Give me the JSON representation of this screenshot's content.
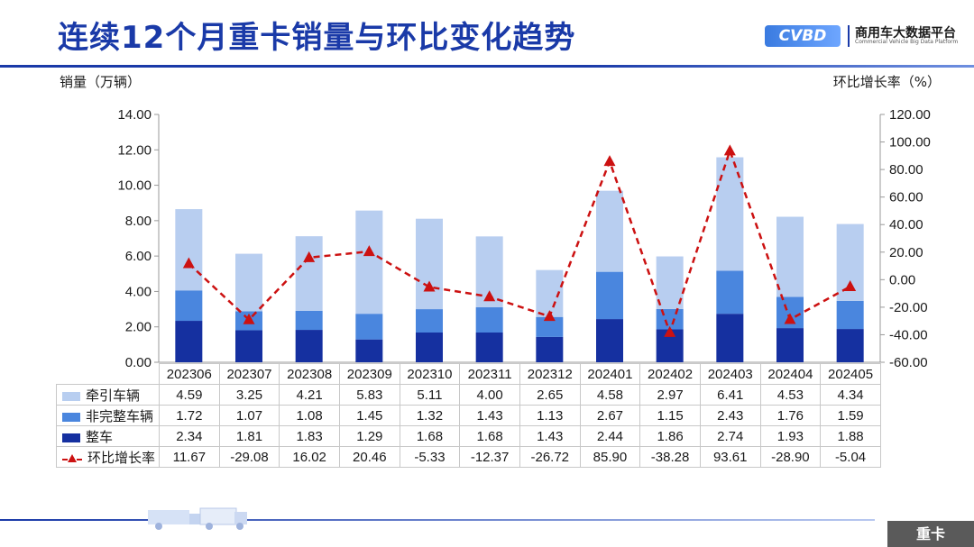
{
  "page": {
    "title": "连续12个月重卡销量与环比变化趋势",
    "logo_name": "商用车大数据平台",
    "logo_sub": "Commercial Vehicle Big Data Platform",
    "logo_mark": "CVBD",
    "category_tag": "重卡"
  },
  "chart_data": {
    "type": "bar",
    "stacked": true,
    "ylabel_left": "销量（万辆）",
    "ylabel_right": "环比增长率（%）",
    "ylim_left": [
      0,
      14
    ],
    "yticks_left": [
      "0.00",
      "2.00",
      "4.00",
      "6.00",
      "8.00",
      "10.00",
      "12.00",
      "14.00"
    ],
    "ylim_right": [
      -60,
      120
    ],
    "yticks_right": [
      "-60.00",
      "-40.00",
      "-20.00",
      "0.00",
      "20.00",
      "40.00",
      "60.00",
      "80.00",
      "100.00",
      "120.00"
    ],
    "categories": [
      "202306",
      "202307",
      "202308",
      "202309",
      "202310",
      "202311",
      "202312",
      "202401",
      "202402",
      "202403",
      "202404",
      "202405"
    ],
    "series": [
      {
        "name": "牵引车辆",
        "kind": "bar",
        "color": "#b8cef0",
        "labels": [
          "4.59",
          "3.25",
          "4.21",
          "5.83",
          "5.11",
          "4.00",
          "2.65",
          "4.58",
          "2.97",
          "6.41",
          "4.53",
          "4.34"
        ],
        "values": [
          4.59,
          3.25,
          4.21,
          5.83,
          5.11,
          4.0,
          2.65,
          4.58,
          2.97,
          6.41,
          4.53,
          4.34
        ]
      },
      {
        "name": "非完整车辆",
        "kind": "bar",
        "color": "#4a86de",
        "labels": [
          "1.72",
          "1.07",
          "1.08",
          "1.45",
          "1.32",
          "1.43",
          "1.13",
          "2.67",
          "1.15",
          "2.43",
          "1.76",
          "1.59"
        ],
        "values": [
          1.72,
          1.07,
          1.08,
          1.45,
          1.32,
          1.43,
          1.13,
          2.67,
          1.15,
          2.43,
          1.76,
          1.59
        ]
      },
      {
        "name": "整车",
        "kind": "bar",
        "color": "#1530a0",
        "labels": [
          "2.34",
          "1.81",
          "1.83",
          "1.29",
          "1.68",
          "1.68",
          "1.43",
          "2.44",
          "1.86",
          "2.74",
          "1.93",
          "1.88"
        ],
        "values": [
          2.34,
          1.81,
          1.83,
          1.29,
          1.68,
          1.68,
          1.43,
          2.44,
          1.86,
          2.74,
          1.93,
          1.88
        ]
      },
      {
        "name": "环比增长率",
        "kind": "line",
        "color": "#cc1111",
        "axis": "right",
        "labels": [
          "11.67",
          "-29.08",
          "16.02",
          "20.46",
          "-5.33",
          "-12.37",
          "-26.72",
          "85.90",
          "-38.28",
          "93.61",
          "-28.90",
          "-5.04"
        ],
        "values": [
          11.67,
          -29.08,
          16.02,
          20.46,
          -5.33,
          -12.37,
          -26.72,
          85.9,
          -38.28,
          93.61,
          -28.9,
          -5.04
        ]
      }
    ]
  }
}
